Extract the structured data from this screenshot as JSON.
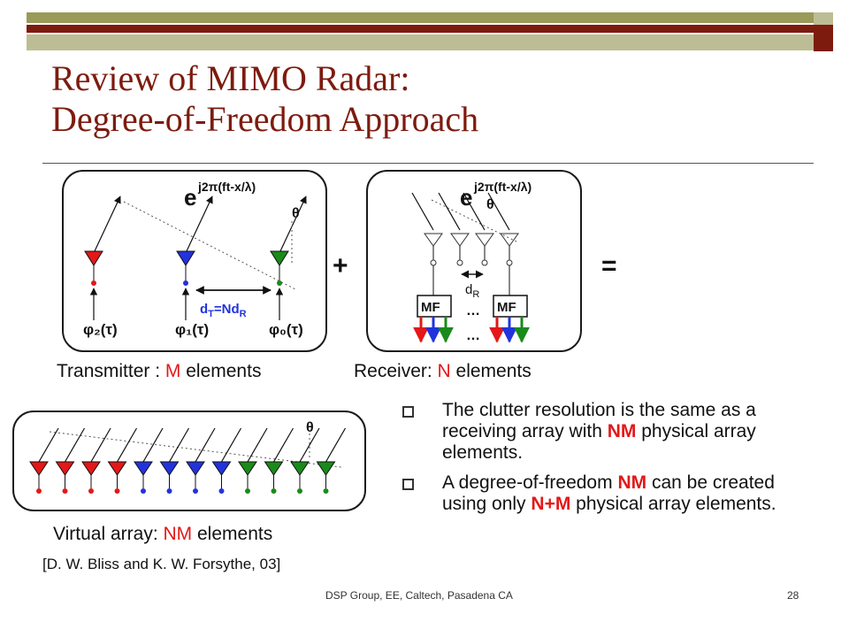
{
  "slide": {
    "title_line1": "Review of MIMO Radar:",
    "title_line2": "Degree-of-Freedom Approach",
    "footer_center": "DSP Group, EE, Caltech, Pasadena CA",
    "page_number": "28"
  },
  "diagram": {
    "wave_base": "e",
    "wave_exp": "j2π(ft-x/λ)",
    "theta": "θ",
    "spacing_tx_main": "d",
    "spacing_tx_sub": "T",
    "spacing_tx_mid": "=Nd",
    "spacing_tx_sub2": "R",
    "spacing_rx_main": "d",
    "spacing_rx_sub": "R",
    "mf_label": "MF",
    "dots": "…",
    "plus": "+",
    "equals": "=",
    "phi2": "φ₂(τ)",
    "phi1": "φ₁(τ)",
    "phi0": "φ₀(τ)",
    "colors": {
      "red": "#e31818",
      "blue": "#2233dd",
      "green": "#1a8a1a"
    }
  },
  "labels": {
    "transmitter_prefix": "Transmitter : ",
    "transmitter_var": "M",
    "transmitter_suffix": " elements",
    "receiver_prefix": "Receiver: ",
    "receiver_var": "N",
    "receiver_suffix": " elements",
    "virtual_prefix": "Virtual array: ",
    "virtual_var": "NM",
    "virtual_suffix": " elements",
    "citation": "[D. W. Bliss and K. W. Forsythe, 03]"
  },
  "bullets": [
    {
      "t1": "The clutter resolution is the same as a receiving array with ",
      "h1": "NM",
      "t2": " physical array elements."
    },
    {
      "t1": "A degree-of-freedom ",
      "h1": "NM",
      "t2": " can be created using only ",
      "h2": "N+M",
      "t3": " physical array elements."
    }
  ]
}
